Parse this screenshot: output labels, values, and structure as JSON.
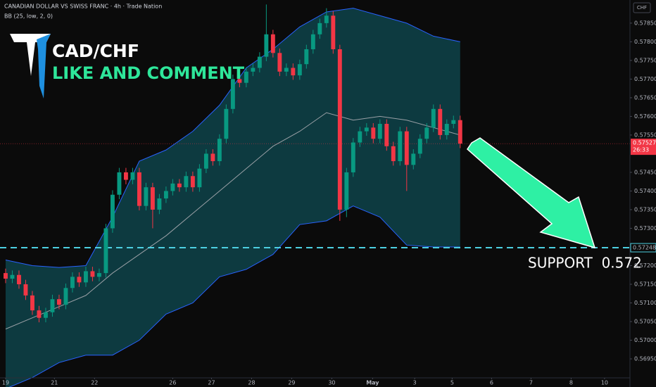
{
  "chart_data": {
    "type": "candlestick",
    "title": "CANADIAN DOLLAR VS SWISS FRANC · 4h · Trade Nation",
    "indicator": "BB (25, low, 2, 0)",
    "currency": "CHF",
    "headline": "CAD/CHF",
    "call_to_action": "LIKE AND COMMENT",
    "annotation": "SUPPORT  0.572",
    "support_level": {
      "value": 0.57248,
      "label": "0.57248"
    },
    "last_price": {
      "value": 0.57527,
      "label": "0.57527"
    },
    "countdown": "26:33",
    "up_color": "#089981",
    "down_color": "#f23645",
    "open": [
      0.5718,
      0.57165,
      0.57175,
      0.5715,
      0.5712,
      0.5708,
      0.5706,
      0.57075,
      0.5711,
      0.57095,
      0.5714,
      0.5717,
      0.57155,
      0.57185,
      0.5717,
      0.5718,
      0.573,
      0.5739,
      0.5745,
      0.5743,
      0.5745,
      0.5736,
      0.5741,
      0.5735,
      0.5738,
      0.574,
      0.5742,
      0.5741,
      0.5744,
      0.5741,
      0.5746,
      0.575,
      0.5748,
      0.5754,
      0.5762,
      0.577,
      0.5769,
      0.5772,
      0.5773,
      0.5776,
      0.5782,
      0.5777,
      0.5772,
      0.5773,
      0.5771,
      0.5774,
      0.5778,
      0.5782,
      0.5785,
      0.5787,
      0.5778,
      0.5735,
      0.5745,
      0.5753,
      0.5756,
      0.5757,
      0.5754,
      0.5758,
      0.5752,
      0.5748,
      0.5756,
      0.5747,
      0.575,
      0.5754,
      0.5757,
      0.5762,
      0.5755,
      0.5758,
      0.5759
    ],
    "high": [
      0.57192,
      0.57187,
      0.57187,
      0.57162,
      0.57132,
      0.57092,
      0.57087,
      0.57122,
      0.57122,
      0.57152,
      0.57182,
      0.57182,
      0.57197,
      0.57197,
      0.57192,
      0.57312,
      0.57402,
      0.57462,
      0.57462,
      0.57462,
      0.57462,
      0.57422,
      0.57422,
      0.57392,
      0.57412,
      0.57432,
      0.57432,
      0.57452,
      0.57452,
      0.57472,
      0.57512,
      0.57512,
      0.57552,
      0.57632,
      0.57712,
      0.57712,
      0.57732,
      0.57742,
      0.57772,
      0.579,
      0.57832,
      0.57782,
      0.57742,
      0.57742,
      0.57752,
      0.57792,
      0.57832,
      0.57862,
      0.5789,
      0.57882,
      0.57792,
      0.57462,
      0.57542,
      0.57572,
      0.57582,
      0.57582,
      0.57592,
      0.57592,
      0.57532,
      0.57572,
      0.57572,
      0.57512,
      0.57552,
      0.57582,
      0.57632,
      0.57632,
      0.57592,
      0.57602,
      0.57602
    ],
    "low": [
      0.57153,
      0.57153,
      0.57138,
      0.57108,
      0.57068,
      0.57048,
      0.57048,
      0.57063,
      0.57083,
      0.57083,
      0.57128,
      0.57143,
      0.57143,
      0.57158,
      0.57158,
      0.57168,
      0.57288,
      0.57378,
      0.57418,
      0.57418,
      0.57348,
      0.57348,
      0.573,
      0.57338,
      0.57368,
      0.57388,
      0.57398,
      0.57398,
      0.57398,
      0.57398,
      0.57448,
      0.57468,
      0.57468,
      0.57528,
      0.57608,
      0.57678,
      0.57678,
      0.57708,
      0.57718,
      0.57748,
      0.57758,
      0.57708,
      0.57708,
      0.57698,
      0.57698,
      0.57728,
      0.57768,
      0.57808,
      0.57838,
      0.57768,
      0.5732,
      0.5733,
      0.57438,
      0.57518,
      0.57548,
      0.57528,
      0.57528,
      0.57508,
      0.57468,
      0.57468,
      0.574,
      0.57458,
      0.57488,
      0.57528,
      0.57558,
      0.57538,
      0.57538,
      0.57568,
      0.57515
    ],
    "close": [
      0.57165,
      0.57175,
      0.5715,
      0.5712,
      0.5708,
      0.5706,
      0.57075,
      0.5711,
      0.57095,
      0.5714,
      0.5717,
      0.57155,
      0.57185,
      0.5717,
      0.5718,
      0.573,
      0.5739,
      0.5745,
      0.5743,
      0.5745,
      0.5736,
      0.5741,
      0.5735,
      0.5738,
      0.574,
      0.5742,
      0.5741,
      0.5744,
      0.5741,
      0.5746,
      0.575,
      0.5748,
      0.5754,
      0.5762,
      0.577,
      0.5769,
      0.5772,
      0.5773,
      0.5776,
      0.5782,
      0.5777,
      0.5772,
      0.5773,
      0.5771,
      0.5774,
      0.5778,
      0.5782,
      0.5785,
      0.5787,
      0.5778,
      0.5735,
      0.5745,
      0.5753,
      0.5756,
      0.5757,
      0.5754,
      0.5758,
      0.5752,
      0.5748,
      0.5756,
      0.5747,
      0.575,
      0.5754,
      0.5757,
      0.5762,
      0.5755,
      0.5758,
      0.5759,
      0.57527
    ],
    "bands": {
      "x": [
        0,
        4,
        8,
        12,
        16,
        20,
        24,
        28,
        32,
        36,
        40,
        44,
        48,
        52,
        56,
        60,
        64,
        68
      ],
      "upper": [
        0.57215,
        0.572,
        0.57195,
        0.572,
        0.5733,
        0.5748,
        0.5751,
        0.5756,
        0.5763,
        0.5773,
        0.5778,
        0.5784,
        0.5788,
        0.5789,
        0.5787,
        0.5785,
        0.57815,
        0.578
      ],
      "middle": [
        0.5703,
        0.5706,
        0.5709,
        0.5712,
        0.5718,
        0.5723,
        0.5728,
        0.5734,
        0.574,
        0.5746,
        0.5752,
        0.5756,
        0.5761,
        0.5759,
        0.576,
        0.5759,
        0.5757,
        0.5755
      ],
      "lower": [
        0.5687,
        0.569,
        0.5694,
        0.5696,
        0.5696,
        0.57,
        0.5707,
        0.571,
        0.5717,
        0.5719,
        0.5723,
        0.5731,
        0.5732,
        0.5736,
        0.5733,
        0.57255,
        0.5725,
        0.5725
      ],
      "line_color": "#2962ff",
      "middle_color": "#9aa0a6",
      "fill": "#0d3a40"
    },
    "xlim": [
      -0.84,
      93.4
    ],
    "ylim": [
      0.56901,
      0.57912
    ],
    "xticks": [
      {
        "value": 0,
        "label": "19"
      },
      {
        "value": 7.3,
        "label": "21"
      },
      {
        "value": 13.3,
        "label": "22"
      },
      {
        "value": 25,
        "label": "26"
      },
      {
        "value": 30.8,
        "label": "27"
      },
      {
        "value": 36.8,
        "label": "28"
      },
      {
        "value": 42.8,
        "label": "29"
      },
      {
        "value": 48.8,
        "label": "30"
      },
      {
        "value": 54.9,
        "label": "May"
      },
      {
        "value": 61.2,
        "label": "3"
      },
      {
        "value": 66.8,
        "label": "5"
      },
      {
        "value": 72.7,
        "label": "6"
      },
      {
        "value": 78.6,
        "label": "7"
      },
      {
        "value": 84.6,
        "label": "8"
      },
      {
        "value": 89.6,
        "label": "10"
      }
    ],
    "yticks": [
      {
        "value": 0.5785,
        "label": "0.57850"
      },
      {
        "value": 0.578,
        "label": "0.57800"
      },
      {
        "value": 0.5775,
        "label": "0.57750"
      },
      {
        "value": 0.577,
        "label": "0.57700"
      },
      {
        "value": 0.5765,
        "label": "0.57650"
      },
      {
        "value": 0.576,
        "label": "0.57600"
      },
      {
        "value": 0.5755,
        "label": "0.57550"
      },
      {
        "value": 0.5745,
        "label": "0.57450"
      },
      {
        "value": 0.574,
        "label": "0.57400"
      },
      {
        "value": 0.5735,
        "label": "0.57350"
      },
      {
        "value": 0.573,
        "label": "0.57300"
      },
      {
        "value": 0.572,
        "label": "0.57200"
      },
      {
        "value": 0.5715,
        "label": "0.57150"
      },
      {
        "value": 0.571,
        "label": "0.57100"
      },
      {
        "value": 0.5705,
        "label": "0.57050"
      },
      {
        "value": 0.57,
        "label": "0.57000"
      },
      {
        "value": 0.5695,
        "label": "0.56950"
      }
    ]
  }
}
